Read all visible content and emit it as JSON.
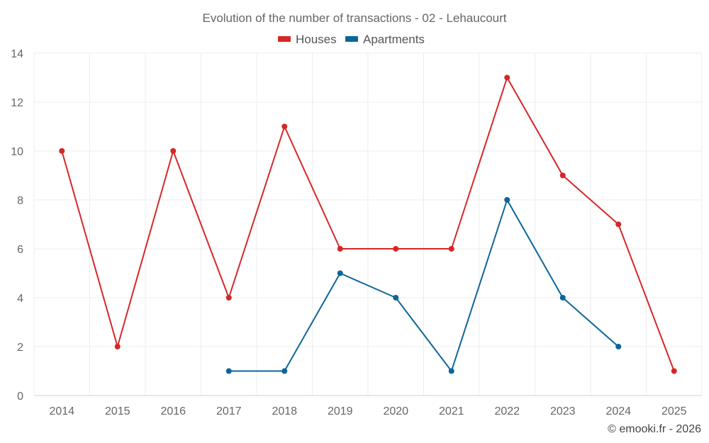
{
  "chart_data": {
    "type": "line",
    "title": "Evolution of the number of transactions - 02 - Lehaucourt",
    "categories": [
      "2014",
      "2015",
      "2016",
      "2017",
      "2018",
      "2019",
      "2020",
      "2021",
      "2022",
      "2023",
      "2024",
      "2025"
    ],
    "series": [
      {
        "name": "Houses",
        "color": "#d62728",
        "values": [
          10,
          2,
          10,
          4,
          11,
          6,
          6,
          6,
          13,
          9,
          7,
          1
        ]
      },
      {
        "name": "Apartments",
        "color": "#0d6699",
        "values": [
          null,
          null,
          null,
          1,
          1,
          5,
          4,
          1,
          8,
          4,
          2,
          null
        ]
      }
    ],
    "yticks": [
      0,
      2,
      4,
      6,
      8,
      10,
      12,
      14
    ],
    "ylim": [
      0,
      14
    ],
    "grid": true,
    "legend_position": "top-center"
  },
  "credit": "© emooki.fr - 2026"
}
